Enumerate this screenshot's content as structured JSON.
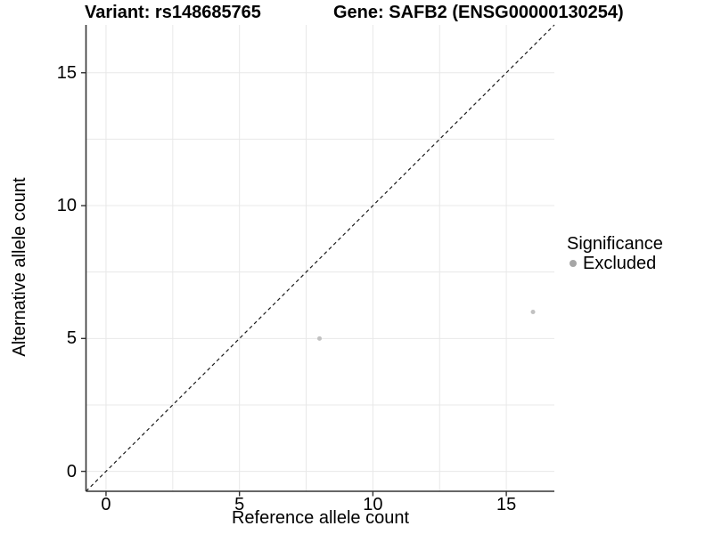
{
  "figure": {
    "title_variant": "Variant: rs148685765",
    "title_gene": "Gene: SAFB2 (ENSG00000130254)"
  },
  "axes": {
    "x_label": "Reference allele count",
    "y_label": "Alternative allele count"
  },
  "legend": {
    "title": "Significance",
    "items": [
      {
        "label": "Excluded",
        "color": "#a6a6a6"
      }
    ]
  },
  "chart_data": {
    "type": "scatter",
    "title": "Variant: rs148685765   Gene: SAFB2 (ENSG00000130254)",
    "xlabel": "Reference allele count",
    "ylabel": "Alternative allele count",
    "xlim": [
      -0.75,
      16.8
    ],
    "ylim": [
      -0.75,
      16.8
    ],
    "x_ticks": [
      0,
      5,
      10,
      15
    ],
    "y_ticks": [
      0,
      5,
      10,
      15
    ],
    "grid": "on",
    "grid_step": 2.5,
    "aspect": "equal",
    "abline": {
      "slope": 1,
      "intercept": 0,
      "style": "dashed",
      "color": "#1a1a1a"
    },
    "series": [
      {
        "name": "Excluded",
        "color": "#c1c1c1",
        "points": [
          {
            "x": 8,
            "y": 5
          },
          {
            "x": 16,
            "y": 6
          }
        ]
      }
    ],
    "legend_title": "Significance",
    "legend_position": "right",
    "legend_items": [
      "Excluded"
    ],
    "colors": {
      "grid": "#e8e8e8",
      "axis": "#333333",
      "tick": "#333333",
      "text": "#000000"
    }
  }
}
